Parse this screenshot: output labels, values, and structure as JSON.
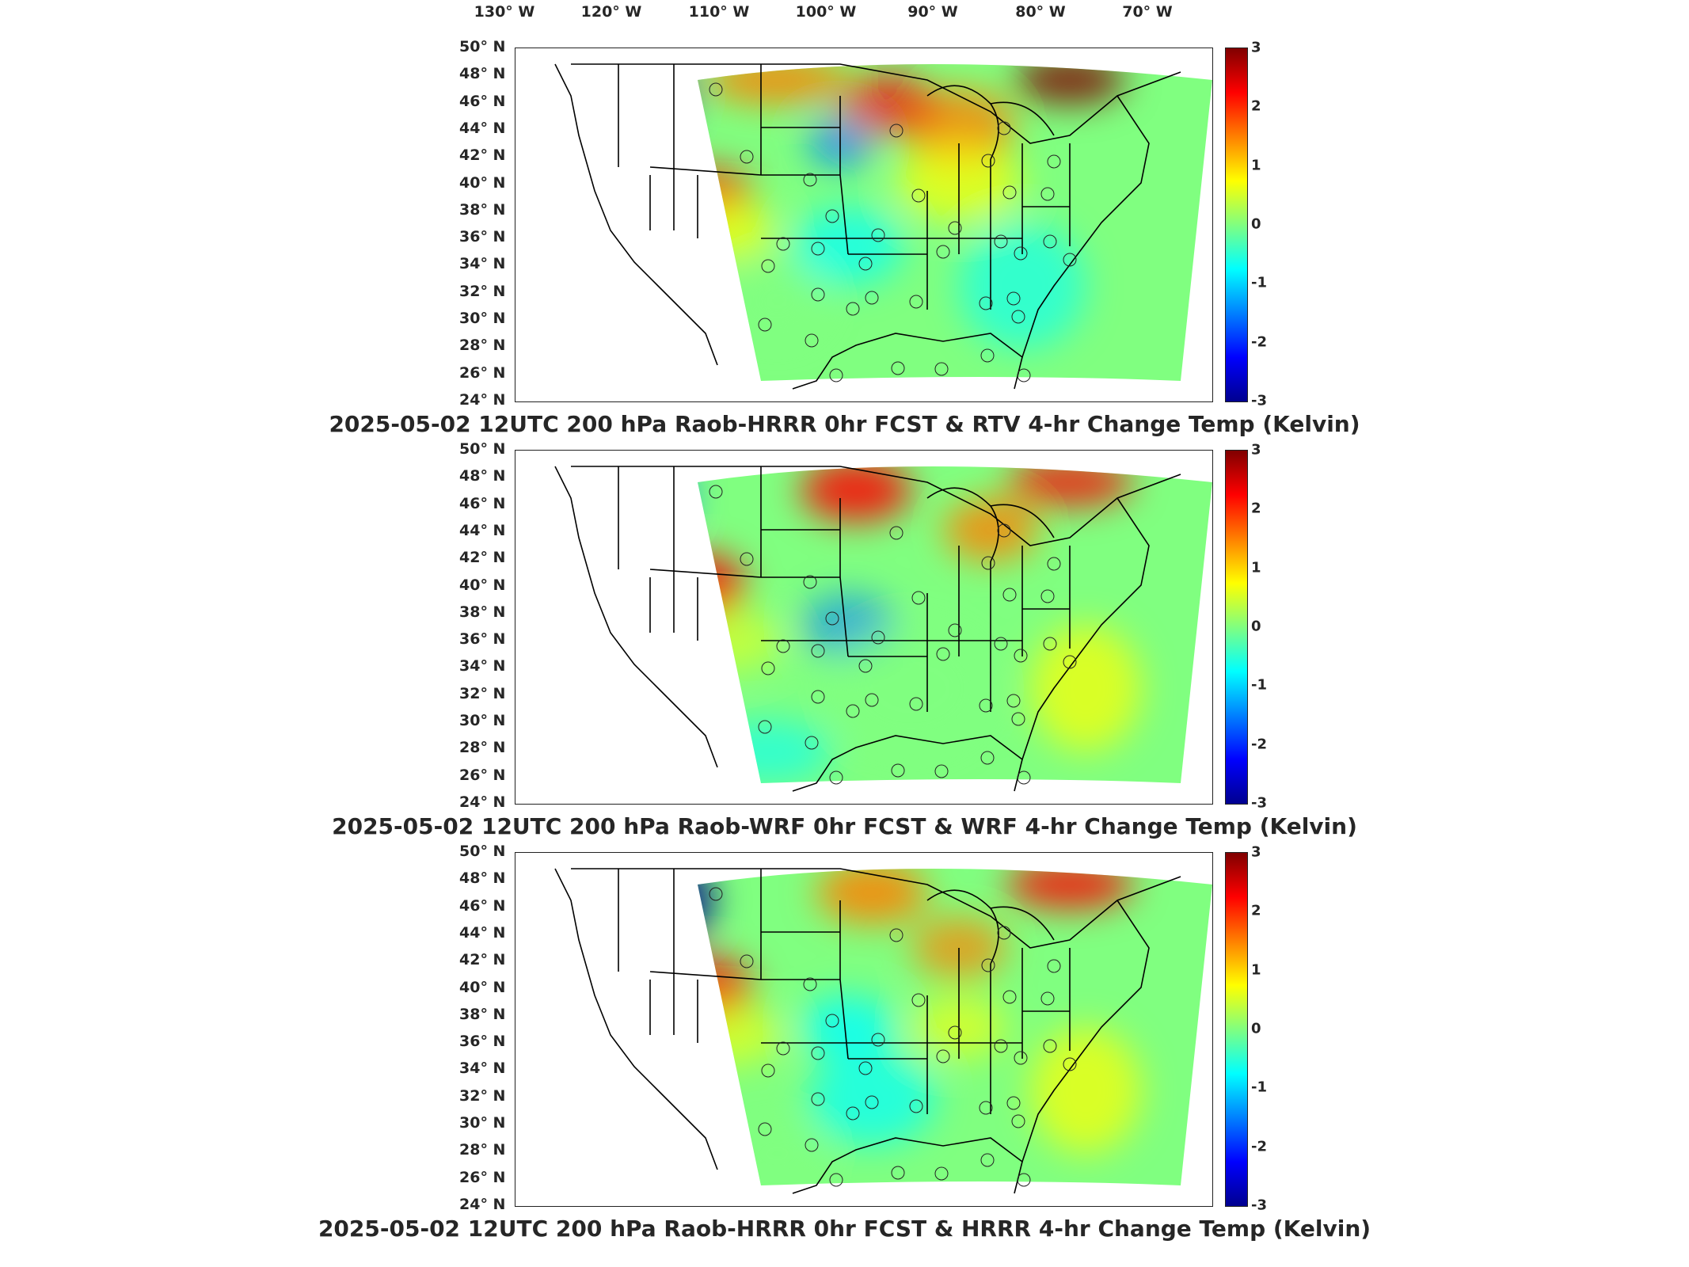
{
  "lon_labels": [
    "130° W",
    "120° W",
    "110° W",
    "100° W",
    "90° W",
    "80° W",
    "70° W"
  ],
  "lat_labels": [
    "50° N",
    "48° N",
    "46° N",
    "44° N",
    "42° N",
    "40° N",
    "38° N",
    "36° N",
    "34° N",
    "32° N",
    "30° N",
    "28° N",
    "26° N",
    "24° N"
  ],
  "colorbar": {
    "range": [
      -3,
      3
    ],
    "ticks": [
      "3",
      "2",
      "1",
      "0",
      "-1",
      "-2",
      "-3"
    ],
    "colormap": "jet"
  },
  "panels": [
    {
      "title": "2025-05-02 12UTC 200 hPa Raob-HRRR 0hr FCST & RTV 4-hr Change Temp (Kelvin)"
    },
    {
      "title": "2025-05-02 12UTC 200 hPa Raob-WRF 0hr FCST & WRF 4-hr Change Temp (Kelvin)"
    },
    {
      "title": "2025-05-02 12UTC 200 hPa Raob-HRRR 0hr FCST & HRRR 4-hr Change Temp (Kelvin)"
    }
  ],
  "colors": {
    "deep_blue": "#00008f",
    "blue": "#0080ff",
    "cyan": "#00ffff",
    "green": "#80ff80",
    "yellow": "#ffff00",
    "orange": "#ff8000",
    "red": "#ff0000",
    "dark_red": "#800000"
  }
}
